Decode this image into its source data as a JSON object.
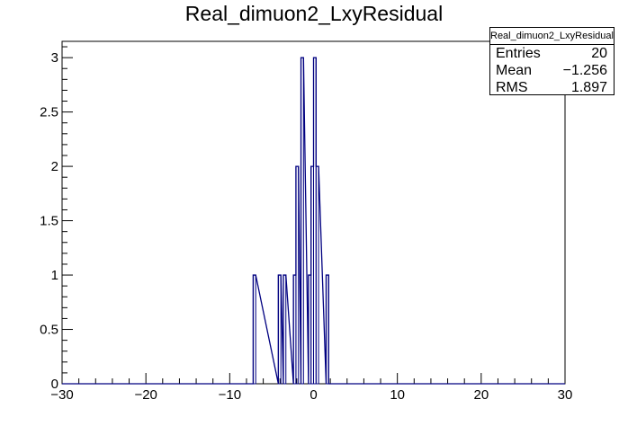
{
  "chart_data": {
    "type": "histogram",
    "title": "Real_dimuon2_LxyResidual",
    "xlim": [
      -30,
      30
    ],
    "ylim": [
      0,
      3.15
    ],
    "x_ticks": [
      -30,
      -20,
      -10,
      0,
      10,
      20,
      30
    ],
    "x_tick_labels": [
      "−30",
      "−20",
      "−10",
      "0",
      "10",
      "20",
      "30"
    ],
    "y_ticks": [
      0,
      0.5,
      1,
      1.5,
      2,
      2.5,
      3
    ],
    "y_tick_labels": [
      "0",
      "0.5",
      "1",
      "1.5",
      "2",
      "2.5",
      "3"
    ],
    "bins": [
      {
        "x0": -7.2,
        "x1": -6.9,
        "count": 1
      },
      {
        "x0": -4.2,
        "x1": -3.9,
        "count": 1
      },
      {
        "x0": -3.6,
        "x1": -3.3,
        "count": 1
      },
      {
        "x0": -2.4,
        "x1": -2.1,
        "count": 1
      },
      {
        "x0": -2.1,
        "x1": -1.8,
        "count": 2
      },
      {
        "x0": -1.5,
        "x1": -1.2,
        "count": 3
      },
      {
        "x0": -0.6,
        "x1": -0.3,
        "count": 1
      },
      {
        "x0": -0.3,
        "x1": 0.0,
        "count": 2
      },
      {
        "x0": 0.0,
        "x1": 0.3,
        "count": 3
      },
      {
        "x0": 0.3,
        "x1": 0.6,
        "count": 2
      },
      {
        "x0": 1.5,
        "x1": 1.8,
        "count": 1
      }
    ],
    "line_color": "#000080",
    "grid": false,
    "legend": "none"
  },
  "stats_box": {
    "title": "Real_dimuon2_LxyResidual",
    "entries_label": "Entries",
    "entries_value": "20",
    "mean_label": "Mean",
    "mean_value": "−1.256",
    "rms_label": "RMS",
    "rms_value": "1.897"
  }
}
